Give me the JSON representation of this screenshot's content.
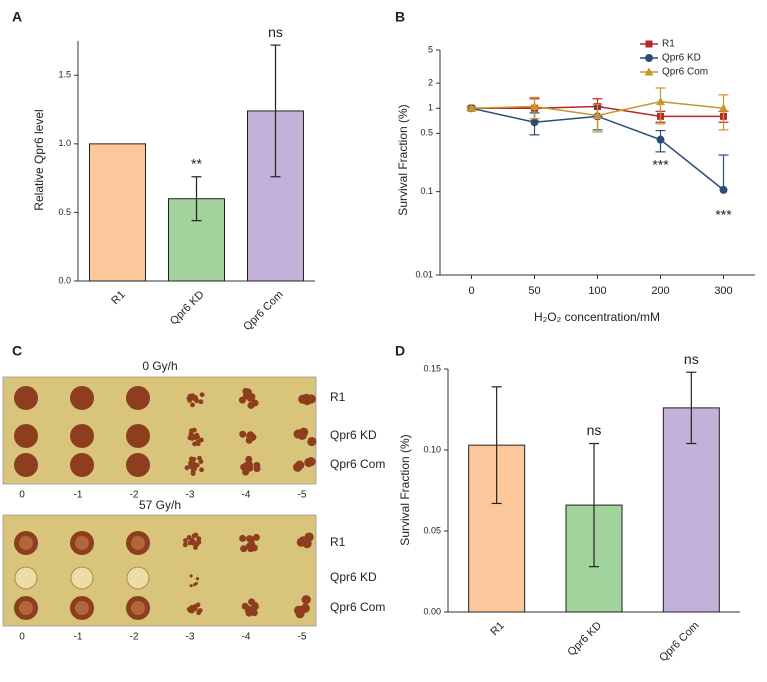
{
  "chart_data": [
    {
      "type": "bar",
      "panel_label": "A",
      "y_label": "Relative Qpr6 level",
      "categories": [
        "R1",
        "Qpr6 KD",
        "Qpr6 Com"
      ],
      "values": [
        1.0,
        0.6,
        1.24
      ],
      "errors": [
        null,
        0.16,
        0.48
      ],
      "colors": [
        "#fcc89b",
        "#a2d39c",
        "#c3b1d9"
      ],
      "annotations": [
        null,
        "**",
        "ns"
      ],
      "ylim": [
        0,
        1.75
      ],
      "yticks": [
        {
          "value": 0,
          "label": "0.0"
        },
        0.5,
        {
          "value": 1,
          "label": "1.0"
        },
        1.5
      ]
    },
    {
      "type": "line",
      "panel_label": "B",
      "y_label": "Survival Fraction (%)",
      "x_label": "H₂O₂ concentration/mM",
      "categories": [
        "0",
        "50",
        "100",
        "200",
        "300"
      ],
      "log_y": true,
      "legend": "top-right",
      "ylim": [
        0.01,
        5
      ],
      "yticks": [
        0.01,
        0.1,
        0.5,
        1,
        2,
        5
      ],
      "series": [
        {
          "name": "R1",
          "color": "#b5272a",
          "marker": "square",
          "values": [
            1,
            1.0,
            1.05,
            0.8,
            0.8
          ],
          "errors": [
            0.05,
            0.3,
            0.25,
            0.12,
            0.12
          ]
        },
        {
          "name": "Qpr6 KD",
          "color": "#2a4d7a",
          "marker": "circle",
          "values": [
            1,
            0.68,
            0.8,
            0.42,
            0.105
          ],
          "errors": [
            0.05,
            0.2,
            0.25,
            0.12,
            0.17
          ],
          "annotations": [
            null,
            null,
            null,
            "***",
            "***"
          ]
        },
        {
          "name": "Qpr6 Com",
          "color": "#c8962c",
          "marker": "triangle",
          "values": [
            1,
            1.05,
            0.82,
            1.2,
            1.0
          ],
          "errors": [
            0.05,
            0.3,
            0.3,
            0.55,
            0.45
          ]
        }
      ]
    },
    {
      "type": "bar",
      "panel_label": "D",
      "y_label": "Survival Fraction (%)",
      "categories": [
        "R1",
        "Qpr6 KD",
        "Qpr6 Com"
      ],
      "values": [
        0.103,
        0.066,
        0.126
      ],
      "errors": [
        0.036,
        0.038,
        0.022
      ],
      "colors": [
        "#fcc89b",
        "#a2d39c",
        "#c3b1d9"
      ],
      "annotations": [
        null,
        "ns",
        "ns"
      ],
      "ylim": [
        0,
        0.15
      ],
      "yticks": [
        {
          "value": 0,
          "label": "0.00"
        },
        0.05,
        {
          "value": 0.1,
          "label": "0.10"
        },
        0.15
      ]
    }
  ],
  "plate_panel": {
    "panel_label": "C",
    "plates": [
      {
        "title": "0 Gy/h",
        "rows": [
          "R1",
          "Qpr6 KD",
          "Qpr6 Com"
        ],
        "dilutions": [
          "0",
          "-1",
          "-2",
          "-3",
          "-4",
          "-5"
        ]
      },
      {
        "title": "57 Gy/h",
        "rows": [
          "R1",
          "Qpr6 KD",
          "Qpr6 Com"
        ],
        "dilutions": [
          "0",
          "-1",
          "-2",
          "-3",
          "-4",
          "-5"
        ]
      }
    ]
  }
}
